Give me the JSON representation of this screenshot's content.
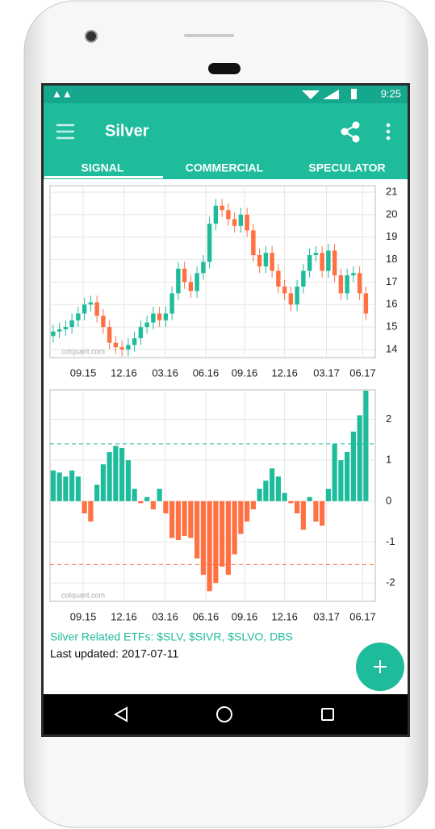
{
  "status_bar": {
    "time": "9:25"
  },
  "app_bar": {
    "title": "Silver"
  },
  "tabs": [
    "SIGNAL",
    "COMMERCIAL",
    "SPECULATOR"
  ],
  "chart_data": [
    {
      "type": "candlestick",
      "watermark": "cotquant.com",
      "x": [
        0.5,
        1.5,
        2.5,
        3.5,
        4.5,
        5.5,
        6.5,
        7.5,
        8.5,
        9.5,
        10.5,
        11.5,
        12.5,
        13.5,
        14.5,
        15.5,
        16.5,
        17.5,
        18.5,
        19.5,
        20.5,
        21.5,
        22.5,
        23.5,
        24.5,
        25.5,
        26.5,
        27.5,
        28.5,
        29.5,
        30.5,
        31.5,
        32.5,
        33.5,
        34.5,
        35.5,
        36.5,
        37.5,
        38.5,
        39.5,
        40.5,
        41.5,
        42.5,
        43.5,
        44.5,
        45.5,
        46.5,
        47.5,
        48.5,
        49.5,
        50.5
      ],
      "open": [
        14.6,
        14.8,
        14.9,
        15.0,
        15.3,
        15.6,
        16.0,
        16.1,
        15.5,
        15.0,
        14.3,
        14.1,
        14.0,
        14.2,
        14.5,
        15.0,
        15.2,
        15.6,
        15.3,
        15.6,
        16.5,
        17.6,
        17.0,
        16.6,
        17.4,
        17.9,
        19.6,
        20.4,
        20.2,
        19.8,
        19.5,
        20.0,
        19.3,
        18.2,
        17.7,
        18.3,
        17.5,
        16.8,
        16.5,
        16.0,
        16.8,
        17.5,
        18.2,
        18.3,
        17.5,
        18.4,
        17.3,
        16.5,
        17.3,
        17.4,
        16.5
      ],
      "high": [
        15.1,
        15.2,
        15.3,
        15.6,
        15.9,
        16.3,
        16.4,
        16.4,
        15.8,
        15.3,
        14.6,
        14.4,
        14.5,
        14.8,
        15.3,
        15.5,
        15.9,
        15.9,
        15.9,
        16.8,
        17.9,
        17.9,
        17.3,
        17.7,
        18.2,
        19.9,
        20.7,
        20.7,
        20.5,
        20.1,
        20.3,
        20.3,
        19.6,
        18.5,
        18.6,
        18.6,
        17.8,
        17.1,
        16.8,
        17.1,
        17.8,
        18.5,
        18.6,
        18.6,
        18.7,
        18.7,
        17.6,
        17.6,
        17.7,
        17.7,
        16.8
      ],
      "low": [
        14.3,
        14.5,
        14.6,
        14.7,
        15.0,
        15.3,
        15.7,
        15.2,
        14.7,
        14.0,
        13.8,
        13.7,
        13.7,
        13.9,
        14.2,
        14.7,
        14.9,
        15.0,
        15.0,
        15.3,
        16.2,
        16.7,
        16.3,
        16.3,
        17.1,
        17.6,
        19.3,
        19.9,
        19.5,
        19.2,
        19.2,
        19.0,
        17.9,
        17.4,
        17.4,
        17.2,
        16.5,
        16.2,
        15.7,
        15.7,
        16.5,
        17.2,
        17.9,
        17.2,
        17.2,
        17.0,
        16.2,
        16.2,
        17.0,
        16.2,
        15.3
      ],
      "close": [
        14.8,
        14.9,
        15.0,
        15.3,
        15.6,
        16.0,
        16.1,
        15.5,
        15.0,
        14.3,
        14.1,
        14.0,
        14.2,
        14.5,
        15.0,
        15.2,
        15.6,
        15.3,
        15.6,
        16.5,
        17.6,
        17.0,
        16.6,
        17.4,
        17.9,
        19.6,
        20.4,
        20.2,
        19.8,
        19.5,
        20.0,
        19.3,
        18.2,
        17.7,
        18.3,
        17.5,
        16.8,
        16.5,
        16.0,
        16.8,
        17.5,
        18.2,
        18.3,
        17.5,
        18.4,
        17.3,
        16.5,
        17.3,
        17.4,
        16.5,
        15.6
      ],
      "up_color": "#1fbc9c",
      "down_color": "#ff7043",
      "xlim": [
        0,
        52
      ],
      "xticks": [
        {
          "value": 5.3,
          "label": "09.15"
        },
        {
          "value": 11.8,
          "label": "12.16"
        },
        {
          "value": 18.4,
          "label": "03.16"
        },
        {
          "value": 24.9,
          "label": "06.16"
        },
        {
          "value": 31.1,
          "label": "09.16"
        },
        {
          "value": 37.5,
          "label": "12.16"
        },
        {
          "value": 44.2,
          "label": "03.17"
        },
        {
          "value": 50,
          "label": "06.17"
        }
      ],
      "ylim": [
        13.64,
        21.29
      ],
      "yticks": [
        14,
        15,
        16,
        17,
        18,
        19,
        20,
        21
      ],
      "grid": true
    },
    {
      "type": "bar",
      "watermark": "cotquant.com",
      "x": [
        0.5,
        1.5,
        2.5,
        3.5,
        4.5,
        5.5,
        6.5,
        7.5,
        8.5,
        9.5,
        10.5,
        11.5,
        12.5,
        13.5,
        14.5,
        15.5,
        16.5,
        17.5,
        18.5,
        19.5,
        20.5,
        21.5,
        22.5,
        23.5,
        24.5,
        25.5,
        26.5,
        27.5,
        28.5,
        29.5,
        30.5,
        31.5,
        32.5,
        33.5,
        34.5,
        35.5,
        36.5,
        37.5,
        38.5,
        39.5,
        40.5,
        41.5,
        42.5,
        43.5,
        44.5,
        45.5,
        46.5,
        47.5,
        48.5,
        49.5,
        50.5
      ],
      "values": [
        0.75,
        0.7,
        0.6,
        0.75,
        0.6,
        -0.3,
        -0.5,
        0.4,
        0.9,
        1.2,
        1.35,
        1.3,
        1.0,
        0.3,
        -0.05,
        0.1,
        -0.2,
        0.3,
        -0.3,
        -0.9,
        -0.95,
        -0.85,
        -0.9,
        -1.4,
        -1.8,
        -2.2,
        -2.0,
        -1.6,
        -1.8,
        -1.3,
        -0.8,
        -0.5,
        -0.2,
        0.3,
        0.5,
        0.8,
        0.6,
        0.2,
        -0.05,
        -0.3,
        -0.7,
        0.1,
        -0.5,
        -0.6,
        0.3,
        1.4,
        1.0,
        1.2,
        1.7,
        2.1,
        2.7
      ],
      "positive_color": "#1fbc9c",
      "negative_color": "#ff7043",
      "reference_lines": [
        {
          "value": 1.4,
          "color": "#1fbc9c"
        },
        {
          "value": -1.55,
          "color": "#ff7043"
        }
      ],
      "xlim": [
        0,
        52
      ],
      "xticks": [
        {
          "value": 5.3,
          "label": "09.15"
        },
        {
          "value": 11.8,
          "label": "12.16"
        },
        {
          "value": 18.4,
          "label": "03.16"
        },
        {
          "value": 24.9,
          "label": "06.16"
        },
        {
          "value": 31.1,
          "label": "09.16"
        },
        {
          "value": 37.5,
          "label": "12.16"
        },
        {
          "value": 44.2,
          "label": "03.17"
        },
        {
          "value": 50,
          "label": "06.17"
        }
      ],
      "ylim": [
        -2.45,
        2.72
      ],
      "yticks": [
        -2,
        -1,
        0,
        1,
        2
      ],
      "grid": true
    }
  ],
  "footer": {
    "etfs": "Silver Related ETFs: $SLV, $SIVR, $SLVO, DBS",
    "updated": "Last updated: 2017-07-11"
  }
}
